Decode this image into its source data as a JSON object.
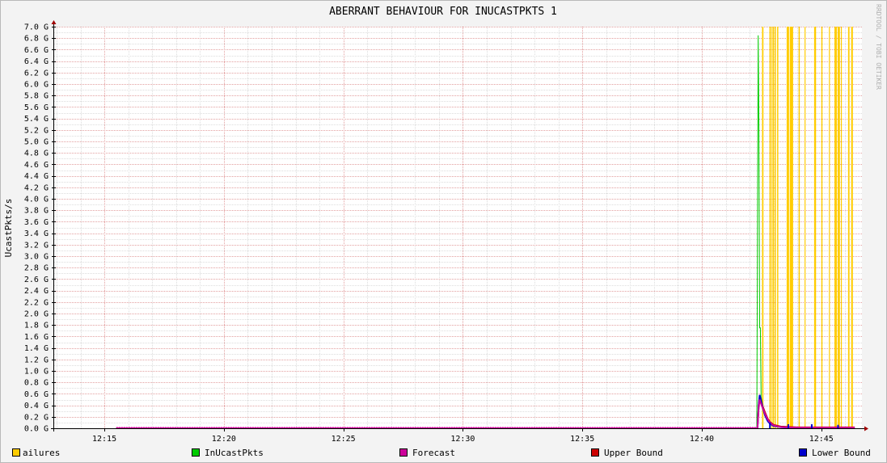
{
  "chart_data": {
    "type": "line",
    "title": "ABERRANT BEHAVIOUR FOR INUCASTPKTS 1",
    "ylabel": "UcastPkts/s",
    "xlabel": "",
    "watermark": "RRDTOOL / TOBI OETIKER",
    "ylim": [
      0,
      7.0
    ],
    "y_unit_suffix": "G",
    "y_ticks": [
      "0.0 G",
      "0.2 G",
      "0.4 G",
      "0.6 G",
      "0.8 G",
      "1.0 G",
      "1.2 G",
      "1.4 G",
      "1.6 G",
      "1.8 G",
      "2.0 G",
      "2.2 G",
      "2.4 G",
      "2.6 G",
      "2.8 G",
      "3.0 G",
      "3.2 G",
      "3.4 G",
      "3.6 G",
      "3.8 G",
      "4.0 G",
      "4.2 G",
      "4.4 G",
      "4.6 G",
      "4.8 G",
      "5.0 G",
      "5.2 G",
      "5.4 G",
      "5.6 G",
      "5.8 G",
      "6.0 G",
      "6.2 G",
      "6.4 G",
      "6.6 G",
      "6.8 G",
      "7.0 G"
    ],
    "x_ticks": [
      "12:15",
      "12:20",
      "12:25",
      "12:30",
      "12:35",
      "12:40",
      "12:45"
    ],
    "xlim_minutes": [
      12.9,
      46.7
    ],
    "x_tick_minutes": [
      15,
      20,
      25,
      30,
      35,
      40,
      45
    ],
    "grid": true,
    "legend_position": "bottom",
    "legend": [
      {
        "label": "Failures",
        "display": "ailures",
        "color": "#ffcc00"
      },
      {
        "label": "InUcastPkts",
        "color": "#00cc00"
      },
      {
        "label": "Forecast",
        "color": "#cc0099"
      },
      {
        "label": "Upper Bound",
        "color": "#cc0000"
      },
      {
        "label": "Lower Bound",
        "color": "#0000cc"
      }
    ],
    "series": [
      {
        "name": "InUcastPkts",
        "color": "#00cc00",
        "points": [
          [
            15.5,
            0
          ],
          [
            42.3,
            0
          ],
          [
            42.33,
            3.4
          ],
          [
            42.36,
            6.85
          ],
          [
            42.39,
            5.2
          ],
          [
            42.42,
            1.75
          ],
          [
            42.45,
            1.75
          ],
          [
            42.48,
            0.55
          ],
          [
            42.52,
            0.45
          ],
          [
            42.6,
            0.3
          ],
          [
            42.7,
            0.18
          ],
          [
            42.8,
            0.1
          ],
          [
            43.0,
            0.04
          ],
          [
            43.3,
            0.02
          ],
          [
            44.0,
            0.01
          ],
          [
            46.4,
            0.01
          ]
        ]
      },
      {
        "name": "Forecast",
        "color": "#cc0099",
        "points": [
          [
            15.5,
            0
          ],
          [
            42.33,
            0
          ],
          [
            42.38,
            0.35
          ],
          [
            42.42,
            0.5
          ],
          [
            42.46,
            0.45
          ],
          [
            42.55,
            0.35
          ],
          [
            42.65,
            0.25
          ],
          [
            42.75,
            0.16
          ],
          [
            42.85,
            0.1
          ],
          [
            43.0,
            0.05
          ],
          [
            43.3,
            0.02
          ],
          [
            44.0,
            0.01
          ],
          [
            46.4,
            0.01
          ]
        ]
      },
      {
        "name": "Upper Bound",
        "color": "#cc0000",
        "points": [
          [
            15.5,
            0
          ],
          [
            42.33,
            0
          ],
          [
            42.38,
            0.4
          ],
          [
            42.42,
            0.55
          ],
          [
            42.46,
            0.5
          ],
          [
            42.55,
            0.38
          ],
          [
            42.65,
            0.27
          ],
          [
            42.75,
            0.17
          ],
          [
            42.85,
            0.11
          ],
          [
            43.0,
            0.06
          ],
          [
            43.3,
            0.03
          ],
          [
            44.0,
            0.015
          ],
          [
            46.4,
            0.015
          ]
        ]
      },
      {
        "name": "Lower Bound",
        "color": "#0000cc",
        "points": [
          [
            15.5,
            0
          ],
          [
            42.33,
            0
          ],
          [
            42.38,
            0.4
          ],
          [
            42.42,
            0.58
          ],
          [
            42.46,
            0.52
          ],
          [
            42.55,
            0.35
          ],
          [
            42.65,
            0.22
          ],
          [
            42.75,
            0.13
          ],
          [
            42.85,
            0.08
          ],
          [
            43.0,
            0.04
          ],
          [
            43.3,
            0.02
          ],
          [
            44.0,
            0.0
          ],
          [
            46.4,
            0.0
          ]
        ]
      }
    ],
    "failure_intervals_minutes": [
      [
        42.52,
        42.58
      ],
      [
        42.83,
        42.88
      ],
      [
        42.9,
        42.93
      ],
      [
        42.96,
        43.02
      ],
      [
        43.05,
        43.1
      ],
      [
        43.15,
        43.2
      ],
      [
        43.55,
        43.65
      ],
      [
        43.68,
        43.82
      ],
      [
        44.05,
        44.1
      ],
      [
        44.3,
        44.34
      ],
      [
        44.7,
        44.78
      ],
      [
        45.0,
        45.05
      ],
      [
        45.32,
        45.36
      ],
      [
        45.55,
        45.65
      ],
      [
        45.68,
        45.78
      ],
      [
        45.82,
        45.86
      ],
      [
        46.12,
        46.18
      ],
      [
        46.25,
        46.32
      ]
    ],
    "lower_bound_spikes_minutes": [
      [
        42.85,
        0.1
      ],
      [
        43.62,
        0.07
      ],
      [
        44.6,
        0.07
      ],
      [
        45.7,
        0.06
      ]
    ]
  }
}
